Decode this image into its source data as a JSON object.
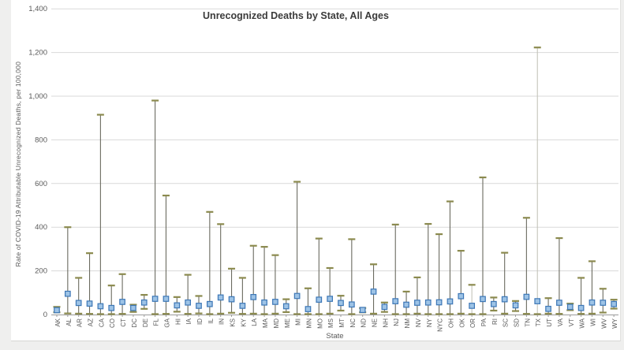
{
  "chart_data": {
    "type": "scatter",
    "subtype": "point-estimates-with-error-bars",
    "title": "Unrecognized Deaths by State, All Ages",
    "xlabel": "State",
    "ylabel": "Rate of COVID-19 Attributable Unrecognized Deaths, per 100,000",
    "ylim": [
      0,
      1400
    ],
    "ytick_interval": 200,
    "ytick_labels": [
      "0",
      "200",
      "400",
      "600",
      "800",
      "1,000",
      "1,200",
      "1,400"
    ],
    "grid": true,
    "legend": "none",
    "categories": [
      "AK",
      "AL",
      "AR",
      "AZ",
      "CA",
      "CO",
      "CT",
      "DC",
      "DE",
      "FL",
      "GA",
      "HI",
      "IA",
      "ID",
      "IL",
      "IN",
      "KS",
      "KY",
      "LA",
      "MA",
      "MD",
      "ME",
      "MI",
      "MN",
      "MO",
      "MS",
      "MT",
      "NC",
      "ND",
      "NE",
      "NH",
      "NJ",
      "NM",
      "NV",
      "NY",
      "NYC",
      "OH",
      "OK",
      "OR",
      "PA",
      "RI",
      "SC",
      "SD",
      "TN",
      "TX",
      "UT",
      "VA",
      "VT",
      "WA",
      "WI",
      "WV",
      "WY"
    ],
    "series": [
      {
        "name": "upper_ci",
        "values": [
          35,
          400,
          168,
          281,
          915,
          133,
          185,
          45,
          90,
          980,
          545,
          80,
          182,
          85,
          470,
          414,
          210,
          168,
          315,
          310,
          272,
          70,
          608,
          120,
          348,
          213,
          86,
          345,
          30,
          230,
          55,
          412,
          105,
          170,
          415,
          368,
          518,
          292,
          136,
          628,
          78,
          283,
          62,
          443,
          1223,
          75,
          350,
          50,
          168,
          244,
          118,
          68
        ]
      },
      {
        "name": "point_estimate",
        "values": [
          20,
          95,
          53,
          50,
          38,
          30,
          58,
          30,
          55,
          72,
          72,
          42,
          55,
          40,
          48,
          78,
          70,
          40,
          80,
          55,
          58,
          38,
          85,
          25,
          68,
          72,
          53,
          46,
          21,
          105,
          35,
          61,
          45,
          54,
          55,
          56,
          60,
          84,
          40,
          71,
          48,
          70,
          42,
          81,
          61,
          26,
          54,
          35,
          30,
          55,
          54,
          48
        ]
      },
      {
        "name": "lower_ci",
        "values": [
          10,
          5,
          4,
          3,
          2,
          2,
          3,
          12,
          26,
          2,
          3,
          13,
          3,
          5,
          2,
          4,
          8,
          3,
          4,
          2,
          4,
          11,
          2,
          2,
          2,
          4,
          18,
          2,
          10,
          4,
          12,
          2,
          2,
          4,
          2,
          2,
          2,
          4,
          2,
          2,
          18,
          4,
          16,
          3,
          2,
          4,
          3,
          20,
          3,
          4,
          9,
          27
        ]
      }
    ],
    "light_whisker_states": [
      "OR",
      "TX"
    ],
    "colors": {
      "gridline": "#d9d9d9",
      "axis_line": "#9b9b9b",
      "tick": "#9b9b9b",
      "whisker": "#6b6b60",
      "whisker_light": "#c4c4ba",
      "cap": "#8b8a4e",
      "marker_fill": "#9dc3e6",
      "marker_border": "#3d77b6",
      "axis_text": "#595959",
      "title_text": "#3b3b3b",
      "plot_background": "#ffffff",
      "page_background": "#efefee"
    }
  }
}
